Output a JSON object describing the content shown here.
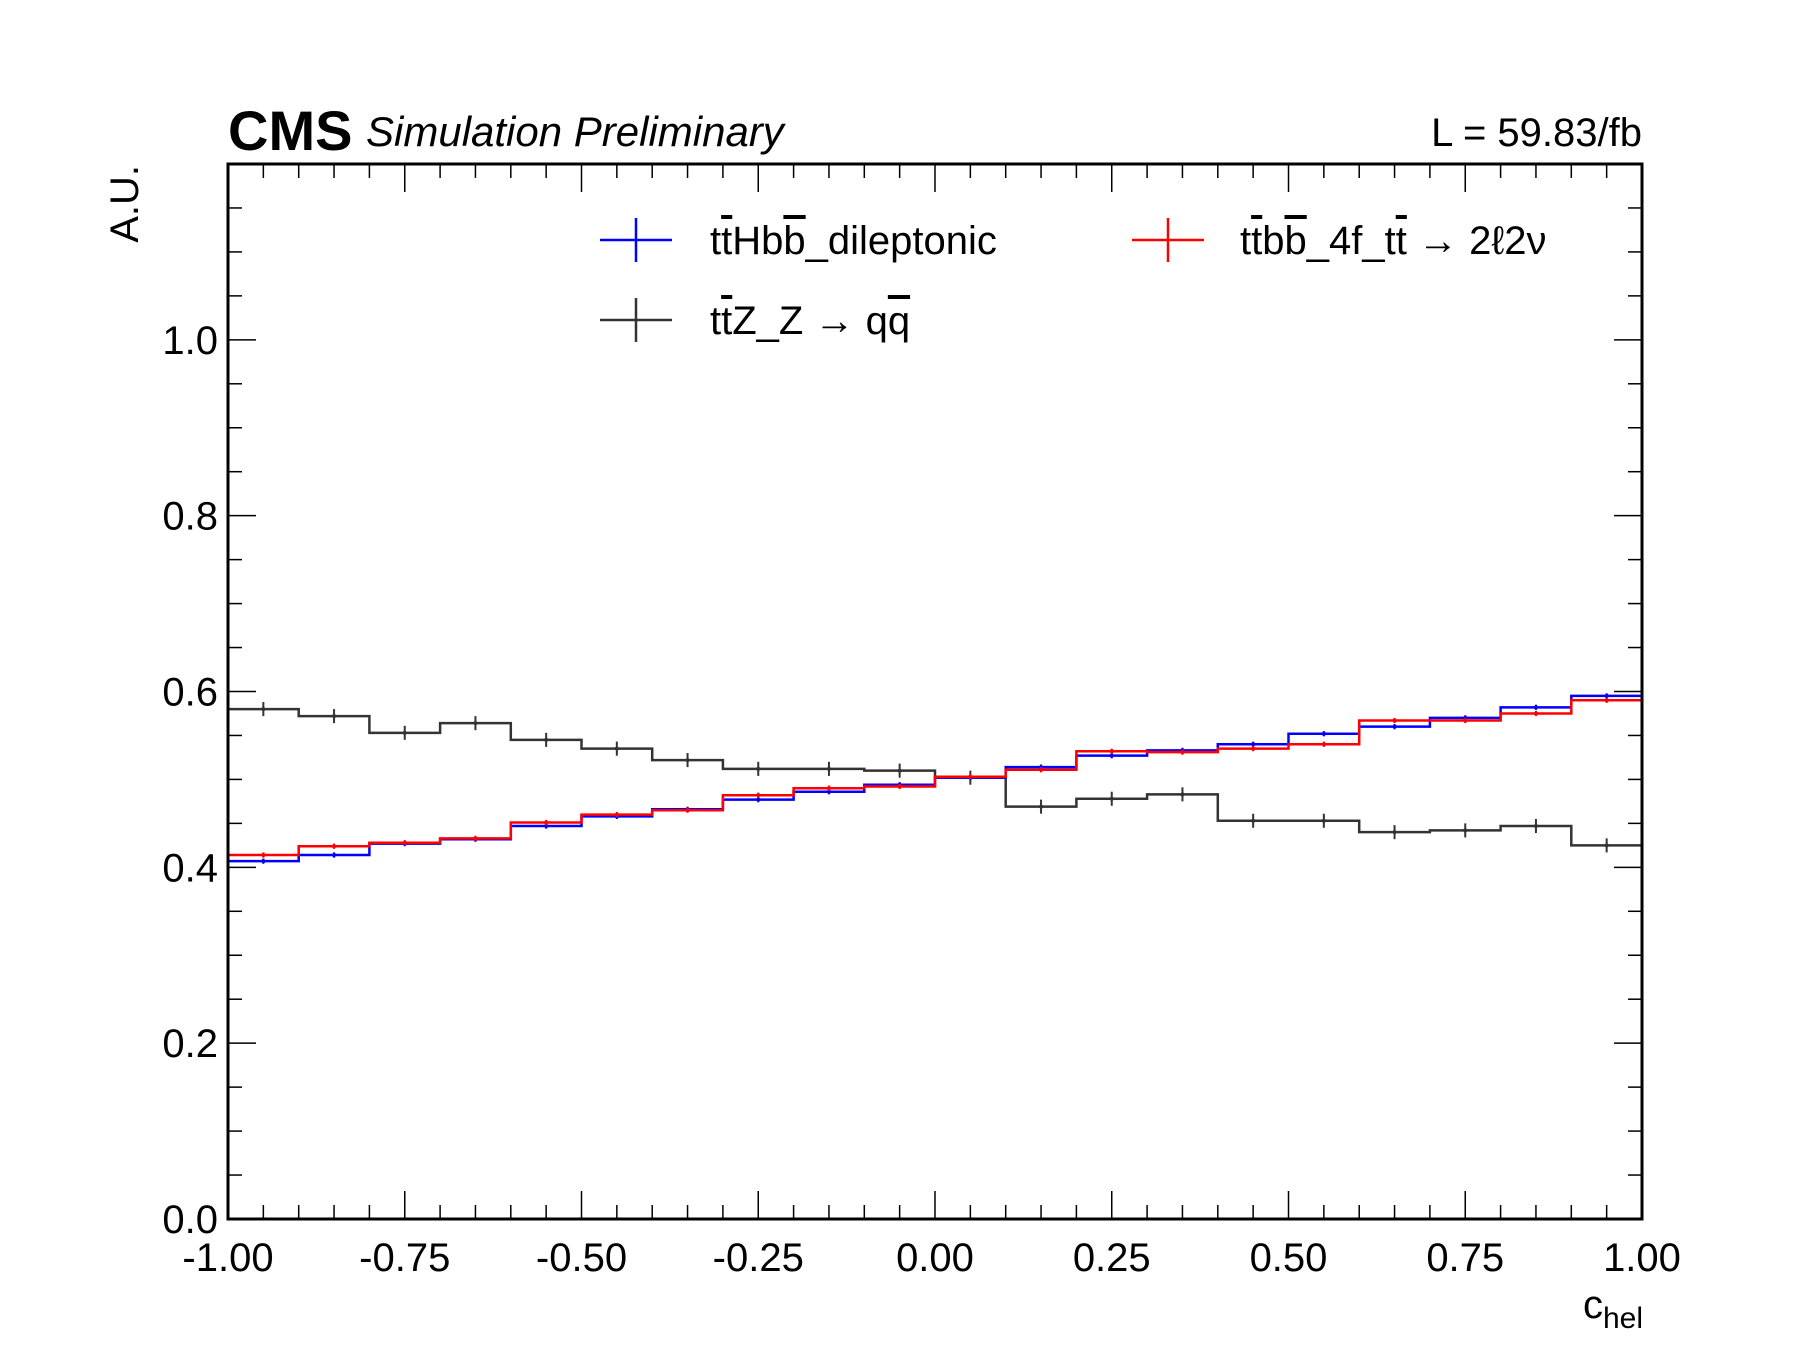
{
  "header": {
    "experiment": "CMS",
    "subtitle": "Simulation Preliminary",
    "lumi": "L = 59.83/fb"
  },
  "chart_data": {
    "type": "histogram-step",
    "xlabel_main": "c",
    "xlabel_sub": "hel",
    "ylabel": "A.U.",
    "xlim": [
      -1.0,
      1.0
    ],
    "ylim": [
      0.0,
      1.2
    ],
    "x_tick_labels": [
      "-1.00",
      "-0.75",
      "-0.50",
      "-0.25",
      "0.00",
      "0.25",
      "0.50",
      "0.75",
      "1.00"
    ],
    "y_tick_labels": [
      "0.0",
      "0.2",
      "0.4",
      "0.6",
      "0.8",
      "1.0"
    ],
    "bin_edges": [
      -1.0,
      -0.9,
      -0.8,
      -0.7,
      -0.6,
      -0.5,
      -0.4,
      -0.3,
      -0.2,
      -0.1,
      0.0,
      0.1,
      0.2,
      0.3,
      0.4,
      0.5,
      0.6,
      0.7,
      0.8,
      0.9,
      1.0
    ],
    "series": [
      {
        "name": "ttHbb_dileptonic",
        "legend": {
          "pre": "t",
          "bar1": "t",
          "mid": "Hb",
          "bar2": "b",
          "post": "_dileptonic"
        },
        "color": "#0000ff",
        "values": [
          0.407,
          0.414,
          0.427,
          0.432,
          0.447,
          0.458,
          0.466,
          0.477,
          0.486,
          0.494,
          0.502,
          0.514,
          0.527,
          0.533,
          0.54,
          0.552,
          0.56,
          0.57,
          0.582,
          0.595
        ],
        "errors": [
          0.003,
          0.003,
          0.003,
          0.003,
          0.003,
          0.003,
          0.003,
          0.003,
          0.003,
          0.003,
          0.003,
          0.003,
          0.003,
          0.003,
          0.003,
          0.003,
          0.003,
          0.003,
          0.003,
          0.003
        ]
      },
      {
        "name": "ttbb_4f_tt -> 2l2v",
        "legend": {
          "pre": "t",
          "bar1": "t",
          "mid": "b",
          "bar2": "b",
          "post": "_4f_t",
          "bar3": "t",
          "post2": " → 2ℓ2ν"
        },
        "color": "#ff0000",
        "values": [
          0.414,
          0.424,
          0.428,
          0.433,
          0.451,
          0.46,
          0.465,
          0.482,
          0.49,
          0.492,
          0.503,
          0.511,
          0.532,
          0.531,
          0.535,
          0.54,
          0.567,
          0.567,
          0.575,
          0.59
        ],
        "errors": [
          0.003,
          0.003,
          0.003,
          0.003,
          0.003,
          0.003,
          0.003,
          0.003,
          0.003,
          0.003,
          0.003,
          0.003,
          0.003,
          0.003,
          0.003,
          0.003,
          0.003,
          0.003,
          0.003,
          0.003
        ]
      },
      {
        "name": "ttZ_Z -> qq",
        "legend": {
          "pre": "t",
          "bar1": "t",
          "mid": "Z_Z → q",
          "bar2": "q",
          "post": ""
        },
        "color": "#333333",
        "values": [
          0.58,
          0.572,
          0.553,
          0.564,
          0.545,
          0.535,
          0.522,
          0.512,
          0.512,
          0.51,
          0.502,
          0.469,
          0.478,
          0.483,
          0.453,
          0.453,
          0.44,
          0.442,
          0.447,
          0.425
        ],
        "errors": [
          0.008,
          0.008,
          0.008,
          0.008,
          0.008,
          0.008,
          0.008,
          0.008,
          0.008,
          0.008,
          0.008,
          0.008,
          0.008,
          0.008,
          0.008,
          0.008,
          0.008,
          0.008,
          0.008,
          0.008
        ]
      }
    ]
  }
}
